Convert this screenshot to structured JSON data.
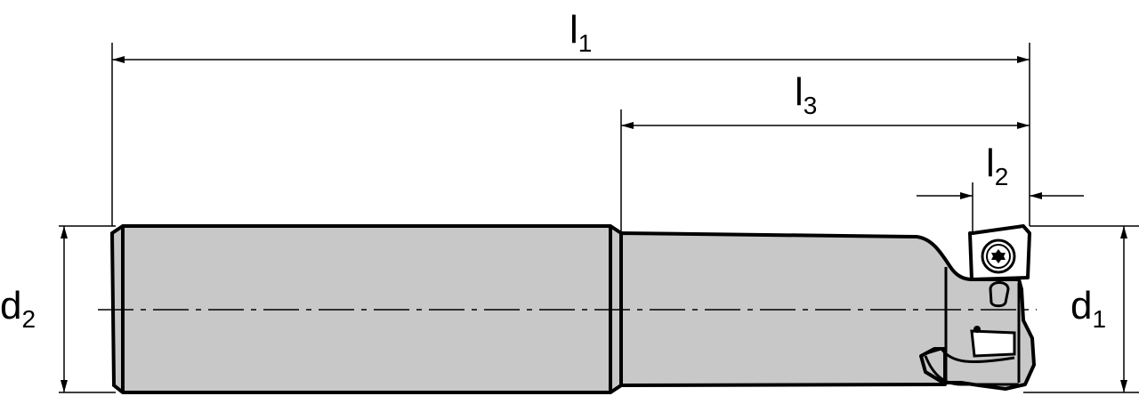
{
  "labels": {
    "l1": {
      "main": "l",
      "sub": "1"
    },
    "l2": {
      "main": "l",
      "sub": "2"
    },
    "l3": {
      "main": "l",
      "sub": "3"
    },
    "d1": {
      "main": "d",
      "sub": "1"
    },
    "d2": {
      "main": "d",
      "sub": "2"
    }
  },
  "colors": {
    "body_fill": "#c8c8c8",
    "line": "#000000",
    "background": "#ffffff"
  }
}
